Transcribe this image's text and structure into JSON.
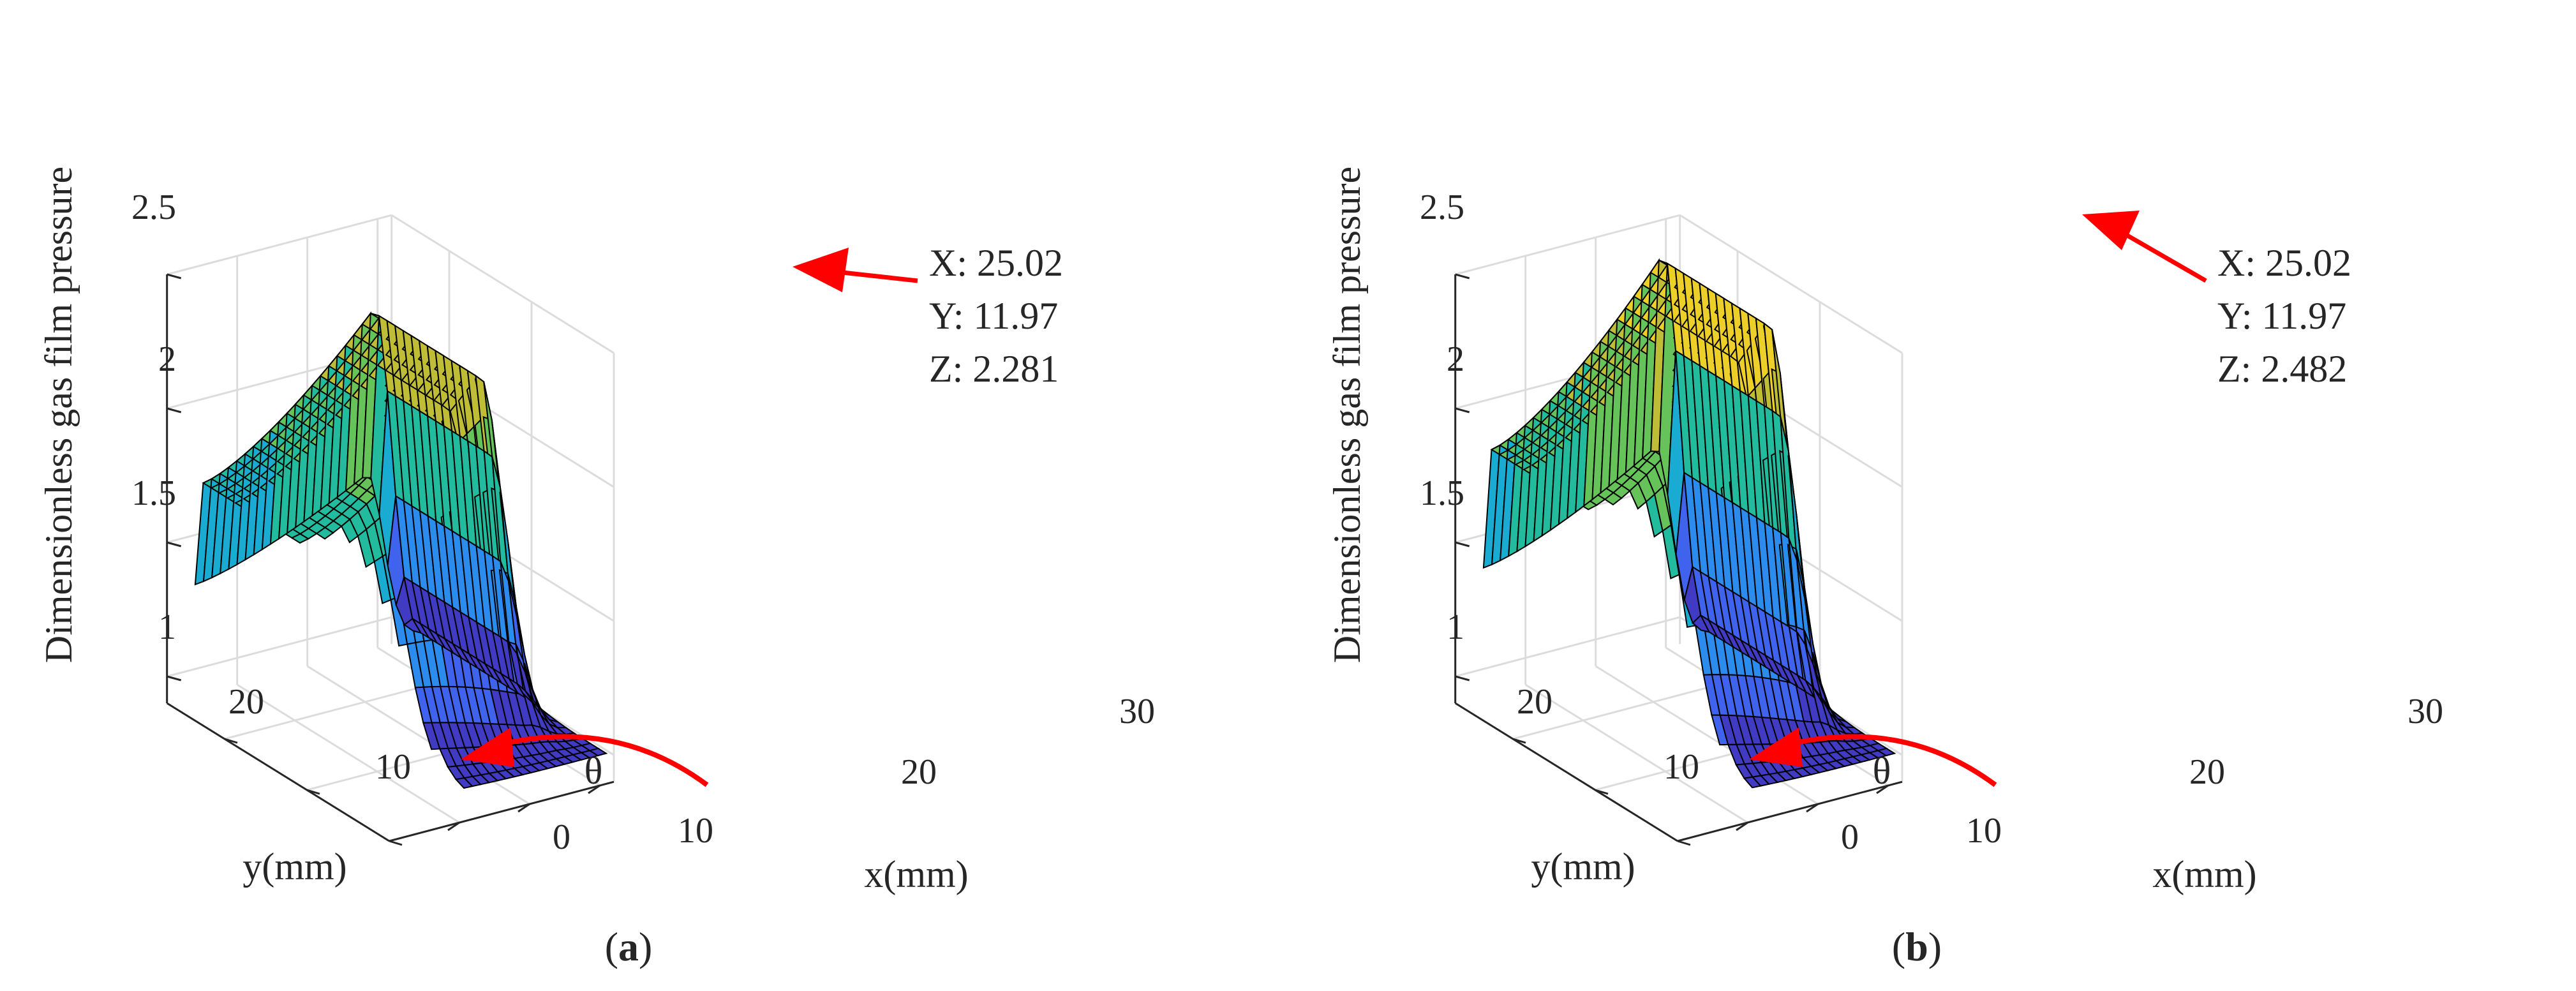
{
  "chart_data": [
    {
      "type": "surface",
      "panel_label": "a",
      "zlabel": "Dimensionless gas film pressure",
      "xlabel": "x(mm)",
      "ylabel": "y(mm)",
      "xlim": [
        0,
        32
      ],
      "ylim": [
        0,
        27
      ],
      "zlim": [
        0.9,
        2.5
      ],
      "xticks": [
        "10",
        "20",
        "30"
      ],
      "yticks": [
        "0",
        "10",
        "20"
      ],
      "zticks": [
        "1",
        "1.5",
        "2",
        "2.5"
      ],
      "grid": true,
      "colormap": "parula",
      "peak_z": 2.281,
      "datatip": {
        "x": "X: 25.02",
        "y": "Y: 11.97",
        "z": "Z: 2.281"
      },
      "annotation_symbol": "θ"
    },
    {
      "type": "surface",
      "panel_label": "b",
      "zlabel": "Dimensionless gas film pressure",
      "xlabel": "x(mm)",
      "ylabel": "y(mm)",
      "xlim": [
        0,
        32
      ],
      "ylim": [
        0,
        27
      ],
      "zlim": [
        0.9,
        2.5
      ],
      "xticks": [
        "10",
        "20",
        "30"
      ],
      "yticks": [
        "0",
        "10",
        "20"
      ],
      "zticks": [
        "1",
        "1.5",
        "2",
        "2.5"
      ],
      "grid": true,
      "colormap": "parula",
      "peak_z": 2.482,
      "datatip": {
        "x": "X: 25.02",
        "y": "Y: 11.97",
        "z": "Z: 2.482"
      },
      "annotation_symbol": "θ"
    }
  ],
  "colors": {
    "grid": "#dcdcdc",
    "axis": "#262626",
    "arrow": "#ff0000",
    "mesh": "#000000"
  }
}
